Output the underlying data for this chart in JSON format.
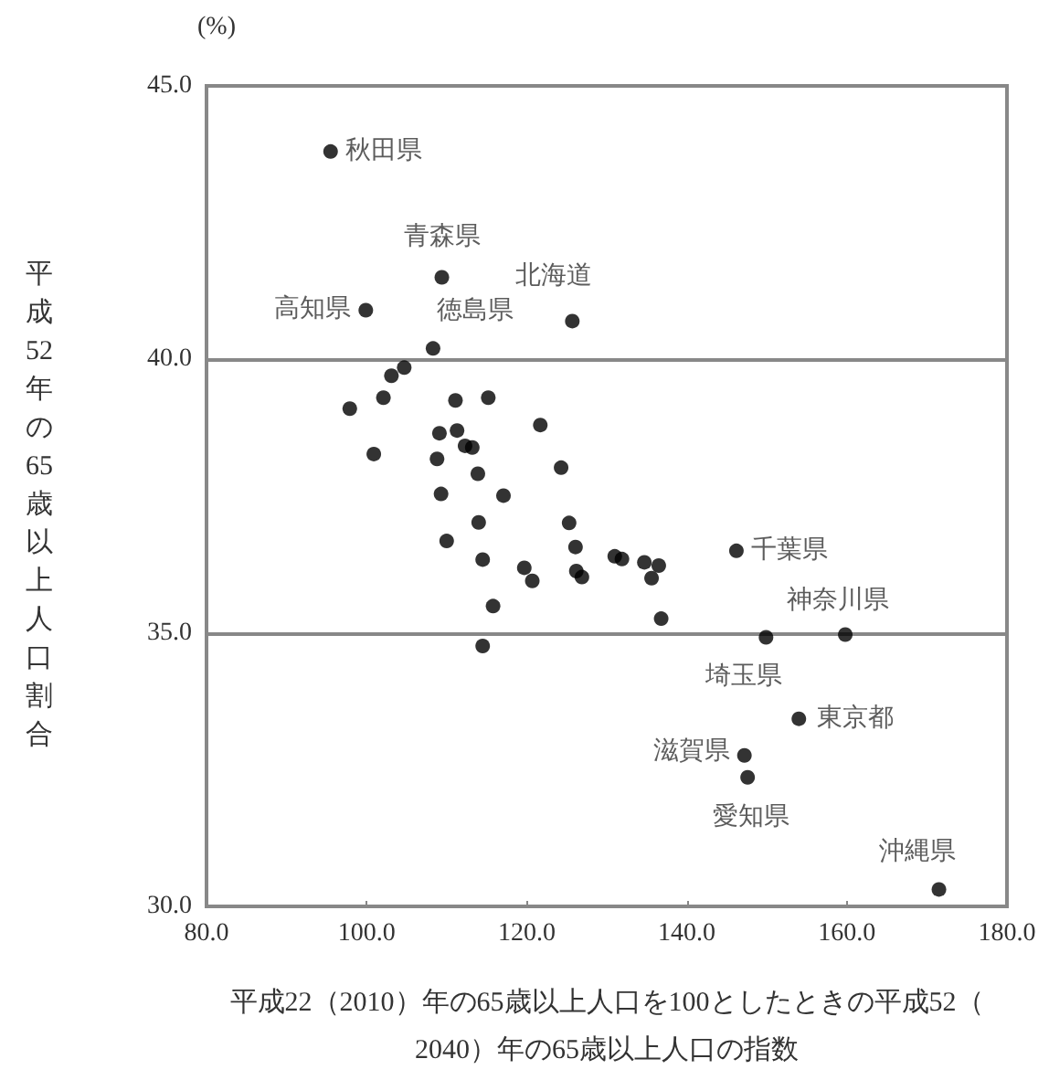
{
  "chart_data": {
    "type": "scatter",
    "xlabel": "平成22（2010）年の65歳以上人口を100としたときの平成52（2040）年の65歳以上人口の指数",
    "ylabel": "平成52年の65歳以上人口割合",
    "x": [
      95.5,
      109.4,
      99.9,
      125.7,
      108.3,
      104.7,
      103.1,
      102.1,
      97.9,
      111.1,
      115.2,
      121.7,
      100.9,
      109.1,
      111.3,
      112.3,
      113.2,
      108.8,
      113.9,
      124.3,
      109.3,
      117.1,
      114.0,
      125.3,
      110.0,
      126.1,
      114.5,
      119.7,
      120.7,
      126.2,
      126.9,
      131.0,
      131.9,
      115.8,
      114.5,
      134.7,
      136.5,
      135.6,
      136.8,
      146.2,
      149.9,
      159.8,
      154.0,
      147.2,
      147.6,
      171.5
    ],
    "values": [
      43.8,
      41.5,
      40.9,
      40.7,
      40.2,
      39.85,
      39.7,
      39.3,
      39.1,
      39.25,
      39.3,
      38.8,
      38.27,
      38.65,
      38.7,
      38.42,
      38.39,
      38.18,
      37.91,
      38.02,
      37.54,
      37.51,
      37.02,
      37.01,
      36.68,
      36.57,
      36.34,
      36.19,
      35.95,
      36.13,
      36.02,
      36.4,
      36.35,
      35.49,
      34.76,
      36.29,
      36.23,
      36.0,
      35.26,
      36.5,
      34.92,
      34.97,
      33.43,
      32.76,
      32.36,
      30.31
    ],
    "color": "#000000",
    "marker": "circle",
    "xlim": [
      80,
      180
    ],
    "xticks": [
      {
        "value": 80,
        "label": "80.0"
      },
      {
        "value": 100,
        "label": "100.0"
      },
      {
        "value": 120,
        "label": "120.0"
      },
      {
        "value": 140,
        "label": "140.0"
      },
      {
        "value": 160,
        "label": "160.0"
      },
      {
        "value": 180,
        "label": "180.0"
      }
    ],
    "ylim": [
      30,
      45
    ],
    "yticks": [
      {
        "value": 30,
        "label": "30.0"
      },
      {
        "value": 35,
        "label": "35.0"
      },
      {
        "value": 40,
        "label": "40.0"
      },
      {
        "value": 45,
        "label": "45.0"
      }
    ],
    "grid": "y",
    "annotations": [
      "(%)",
      {
        "text": "秋田県",
        "x": 95.5,
        "y": 43.8
      },
      {
        "text": "青森県",
        "x": 109.4,
        "y": 41.5
      },
      {
        "text": "高知県",
        "x": 99.9,
        "y": 40.9
      },
      {
        "text": "北海道",
        "x": 125.7,
        "y": 40.7
      },
      {
        "text": "徳島県",
        "x": 108.3,
        "y": 40.2
      },
      {
        "text": "千葉県",
        "x": 146.2,
        "y": 36.5
      },
      {
        "text": "埼玉県",
        "x": 149.9,
        "y": 34.92
      },
      {
        "text": "神奈川県",
        "x": 159.8,
        "y": 34.97
      },
      {
        "text": "東京都",
        "x": 154.0,
        "y": 33.43
      },
      {
        "text": "滋賀県",
        "x": 147.2,
        "y": 32.76
      },
      {
        "text": "愛知県",
        "x": 147.6,
        "y": 32.36
      },
      {
        "text": "沖縄県",
        "x": 171.5,
        "y": 30.31
      }
    ]
  }
}
